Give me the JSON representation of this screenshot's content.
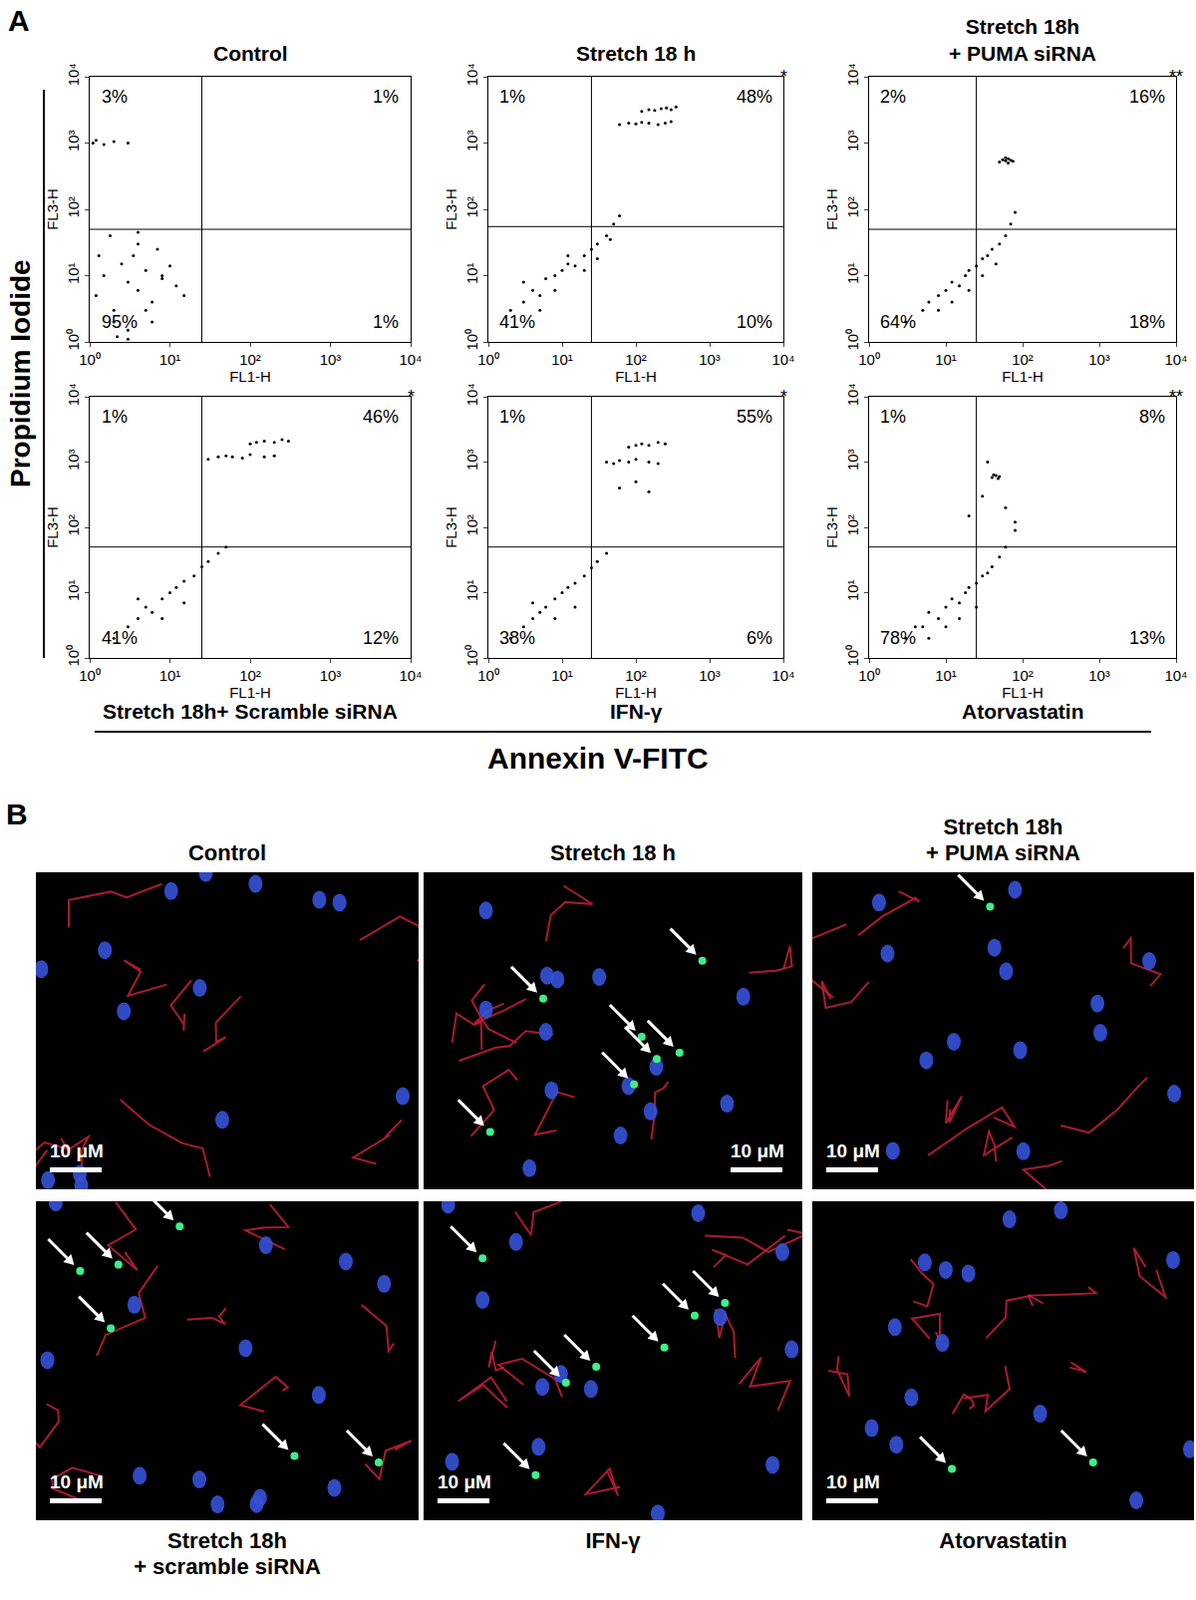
{
  "figure": {
    "panel_labels": [
      "A",
      "B"
    ],
    "y_title": "Propidium Iodide",
    "x_title": "Annexin V-FITC"
  },
  "chart_data": [
    {
      "type": "scatter",
      "title": [
        "Control"
      ],
      "x_label": "FL1-H",
      "y_label": "FL3-H",
      "log": true,
      "xlim": [
        1,
        10000
      ],
      "ylim": [
        1,
        10000
      ],
      "xticks": [
        {
          "value": 1,
          "label": "10⁰"
        },
        {
          "value": 10,
          "label": "10¹"
        },
        {
          "value": 100,
          "label": "10²"
        },
        {
          "value": 1000,
          "label": "10³"
        },
        {
          "value": 10000,
          "label": "10⁴"
        }
      ],
      "yticks": [
        {
          "value": 1,
          "label": "10⁰"
        },
        {
          "value": 10,
          "label": "10¹"
        },
        {
          "value": 100,
          "label": "10²"
        },
        {
          "value": 1000,
          "label": "10³"
        },
        {
          "value": 10000,
          "label": "10⁴"
        }
      ],
      "grid": false,
      "color": "#000000",
      "marker": "dot",
      "gate": {
        "x": 25,
        "y": 50
      },
      "quadrants": {
        "upper_left": {
          "value": 3,
          "label": "3%"
        },
        "upper_right": {
          "value": 1,
          "label": "1%"
        },
        "lower_left": {
          "value": 95,
          "label": "95%"
        },
        "lower_right": {
          "value": 1,
          "label": "1%"
        }
      },
      "x": [
        1.2,
        1.5,
        2,
        2.5,
        3,
        3.5,
        4,
        5,
        6,
        7,
        8,
        10,
        12,
        15,
        2,
        3,
        4,
        5,
        6,
        8,
        1.3,
        1.8,
        2.2,
        3,
        4,
        1.1,
        1.2,
        1.5,
        2,
        3
      ],
      "y": [
        5,
        10,
        3,
        15,
        8,
        20,
        6,
        12,
        4,
        25,
        9,
        14,
        7,
        5,
        2,
        1.5,
        30,
        3,
        2,
        10,
        20,
        40,
        1.2,
        1.1,
        45,
        1000,
        1100,
        950,
        1050,
        1000
      ]
    },
    {
      "type": "scatter",
      "title": [
        "Stretch 18 h"
      ],
      "x_label": "FL1-H",
      "y_label": "FL3-H",
      "log": true,
      "xlim": [
        1,
        10000
      ],
      "ylim": [
        1,
        10000
      ],
      "xticks": [
        {
          "value": 1,
          "label": "10⁰"
        },
        {
          "value": 10,
          "label": "10¹"
        },
        {
          "value": 100,
          "label": "10²"
        },
        {
          "value": 1000,
          "label": "10³"
        },
        {
          "value": 10000,
          "label": "10⁴"
        }
      ],
      "yticks": [
        {
          "value": 1,
          "label": "10⁰"
        },
        {
          "value": 10,
          "label": "10¹"
        },
        {
          "value": 100,
          "label": "10²"
        },
        {
          "value": 1000,
          "label": "10³"
        },
        {
          "value": 10000,
          "label": "10⁴"
        }
      ],
      "grid": false,
      "color": "#000000",
      "marker": "dot",
      "gate": {
        "x": 25,
        "y": 55
      },
      "quadrants": {
        "upper_left": {
          "value": 1,
          "label": "1%"
        },
        "upper_right": {
          "value": 48,
          "label": "48%"
        },
        "lower_left": {
          "value": 41,
          "label": "41%"
        },
        "lower_right": {
          "value": 10,
          "label": "10%"
        }
      },
      "significance": "*",
      "x": [
        2,
        3,
        4,
        5,
        6,
        8,
        10,
        12,
        15,
        20,
        25,
        30,
        40,
        50,
        60,
        3,
        5,
        8,
        12,
        20,
        30,
        45,
        60,
        80,
        100,
        120,
        150,
        200,
        250,
        300,
        120,
        150,
        180,
        220,
        260,
        300,
        350
      ],
      "y": [
        3,
        4,
        6,
        5,
        9,
        10,
        12,
        15,
        14,
        20,
        25,
        30,
        40,
        60,
        80,
        8,
        3,
        6,
        20,
        12,
        18,
        35,
        1900,
        2000,
        1950,
        2050,
        2000,
        1900,
        2000,
        2100,
        3000,
        3200,
        3100,
        3300,
        3400,
        3200,
        3500
      ]
    },
    {
      "type": "scatter",
      "title": [
        "Stretch 18h",
        "+ PUMA siRNA"
      ],
      "x_label": "FL1-H",
      "y_label": "FL3-H",
      "log": true,
      "xlim": [
        1,
        10000
      ],
      "ylim": [
        1,
        10000
      ],
      "xticks": [
        {
          "value": 1,
          "label": "10⁰"
        },
        {
          "value": 10,
          "label": "10¹"
        },
        {
          "value": 100,
          "label": "10²"
        },
        {
          "value": 1000,
          "label": "10³"
        },
        {
          "value": 10000,
          "label": "10⁴"
        }
      ],
      "yticks": [
        {
          "value": 1,
          "label": "10⁰"
        },
        {
          "value": 10,
          "label": "10¹"
        },
        {
          "value": 100,
          "label": "10²"
        },
        {
          "value": 1000,
          "label": "10³"
        },
        {
          "value": 10000,
          "label": "10⁴"
        }
      ],
      "grid": false,
      "color": "#000000",
      "marker": "dot",
      "gate": {
        "x": 25,
        "y": 50
      },
      "quadrants": {
        "upper_left": {
          "value": 2,
          "label": "2%"
        },
        "upper_right": {
          "value": 16,
          "label": "16%"
        },
        "lower_left": {
          "value": 64,
          "label": "64%"
        },
        "lower_right": {
          "value": 18,
          "label": "18%"
        }
      },
      "significance": "**",
      "x": [
        3,
        5,
        6,
        8,
        10,
        12,
        15,
        18,
        20,
        25,
        30,
        35,
        40,
        50,
        60,
        70,
        80,
        8,
        12,
        20,
        30,
        45,
        50,
        55,
        60,
        65,
        70,
        75,
        60,
        65
      ],
      "y": [
        2,
        3,
        4,
        5,
        6,
        8,
        7,
        10,
        12,
        14,
        18,
        20,
        25,
        30,
        40,
        60,
        90,
        3,
        4,
        6,
        10,
        15,
        520,
        560,
        540,
        580,
        550,
        530,
        600,
        500
      ]
    },
    {
      "type": "scatter",
      "title": [
        "Stretch 18h+ Scramble siRNA"
      ],
      "x_label": "FL1-H",
      "y_label": "FL3-H",
      "log": true,
      "xlim": [
        1,
        10000
      ],
      "ylim": [
        1,
        10000
      ],
      "xticks": [
        {
          "value": 1,
          "label": "10⁰"
        },
        {
          "value": 10,
          "label": "10¹"
        },
        {
          "value": 100,
          "label": "10²"
        },
        {
          "value": 1000,
          "label": "10³"
        },
        {
          "value": 10000,
          "label": "10⁴"
        }
      ],
      "yticks": [
        {
          "value": 1,
          "label": "10⁰"
        },
        {
          "value": 10,
          "label": "10¹"
        },
        {
          "value": 100,
          "label": "10²"
        },
        {
          "value": 1000,
          "label": "10³"
        },
        {
          "value": 10000,
          "label": "10⁴"
        }
      ],
      "grid": false,
      "color": "#000000",
      "marker": "dot",
      "gate": {
        "x": 25,
        "y": 50
      },
      "quadrants": {
        "upper_left": {
          "value": 1,
          "label": "1%"
        },
        "upper_right": {
          "value": 46,
          "label": "46%"
        },
        "lower_left": {
          "value": 41,
          "label": "41%"
        },
        "lower_right": {
          "value": 12,
          "label": "12%"
        }
      },
      "significance": "*",
      "x": [
        2,
        3,
        4,
        5,
        6,
        8,
        10,
        12,
        15,
        20,
        25,
        30,
        40,
        50,
        4,
        8,
        15,
        30,
        40,
        50,
        60,
        80,
        100,
        150,
        200,
        100,
        120,
        150,
        200,
        250,
        300
      ],
      "y": [
        2,
        3,
        4,
        6,
        5,
        8,
        10,
        12,
        15,
        18,
        25,
        30,
        40,
        50,
        8,
        4,
        7,
        1100,
        1200,
        1250,
        1200,
        1150,
        1300,
        1200,
        1250,
        1900,
        2000,
        2100,
        2000,
        2200,
        2100
      ]
    },
    {
      "type": "scatter",
      "title": [
        "IFN-γ"
      ],
      "x_label": "FL1-H",
      "y_label": "FL3-H",
      "log": true,
      "xlim": [
        1,
        10000
      ],
      "ylim": [
        1,
        10000
      ],
      "xticks": [
        {
          "value": 1,
          "label": "10⁰"
        },
        {
          "value": 10,
          "label": "10¹"
        },
        {
          "value": 100,
          "label": "10²"
        },
        {
          "value": 1000,
          "label": "10³"
        },
        {
          "value": 10000,
          "label": "10⁴"
        }
      ],
      "yticks": [
        {
          "value": 1,
          "label": "10⁰"
        },
        {
          "value": 10,
          "label": "10¹"
        },
        {
          "value": 100,
          "label": "10²"
        },
        {
          "value": 1000,
          "label": "10³"
        },
        {
          "value": 10000,
          "label": "10⁴"
        }
      ],
      "grid": false,
      "color": "#000000",
      "marker": "dot",
      "gate": {
        "x": 25,
        "y": 50
      },
      "quadrants": {
        "upper_left": {
          "value": 1,
          "label": "1%"
        },
        "upper_right": {
          "value": 55,
          "label": "55%"
        },
        "lower_left": {
          "value": 38,
          "label": "38%"
        },
        "lower_right": {
          "value": 6,
          "label": "6%"
        }
      },
      "significance": "*",
      "x": [
        2,
        3,
        4,
        5,
        6,
        8,
        10,
        12,
        15,
        20,
        25,
        30,
        40,
        4,
        8,
        15,
        40,
        50,
        60,
        80,
        100,
        150,
        200,
        80,
        100,
        120,
        150,
        200,
        250,
        60,
        100,
        150
      ],
      "y": [
        2,
        3,
        4,
        5,
        6,
        8,
        10,
        12,
        14,
        18,
        24,
        30,
        40,
        7,
        4,
        6,
        1000,
        950,
        1050,
        1000,
        1100,
        1000,
        950,
        1700,
        1800,
        1900,
        1800,
        2000,
        1900,
        400,
        500,
        350
      ]
    },
    {
      "type": "scatter",
      "title": [
        "Atorvastatin"
      ],
      "x_label": "FL1-H",
      "y_label": "FL3-H",
      "log": true,
      "xlim": [
        1,
        10000
      ],
      "ylim": [
        1,
        10000
      ],
      "xticks": [
        {
          "value": 1,
          "label": "10⁰"
        },
        {
          "value": 10,
          "label": "10¹"
        },
        {
          "value": 100,
          "label": "10²"
        },
        {
          "value": 1000,
          "label": "10³"
        },
        {
          "value": 10000,
          "label": "10⁴"
        }
      ],
      "yticks": [
        {
          "value": 1,
          "label": "10⁰"
        },
        {
          "value": 10,
          "label": "10¹"
        },
        {
          "value": 100,
          "label": "10²"
        },
        {
          "value": 1000,
          "label": "10³"
        },
        {
          "value": 10000,
          "label": "10⁴"
        }
      ],
      "grid": false,
      "color": "#000000",
      "marker": "dot",
      "gate": {
        "x": 25,
        "y": 50
      },
      "quadrants": {
        "upper_left": {
          "value": 1,
          "label": "1%"
        },
        "upper_right": {
          "value": 8,
          "label": "8%"
        },
        "lower_left": {
          "value": 78,
          "label": "78%"
        },
        "lower_right": {
          "value": 13,
          "label": "13%"
        }
      },
      "significance": "**",
      "x": [
        3,
        4,
        5,
        6,
        8,
        10,
        12,
        15,
        18,
        20,
        25,
        30,
        35,
        40,
        50,
        60,
        80,
        6,
        10,
        15,
        25,
        40,
        45,
        50,
        42,
        48,
        20,
        30,
        60,
        35,
        80
      ],
      "y": [
        2,
        3,
        3,
        5,
        4,
        6,
        8,
        7,
        10,
        12,
        14,
        18,
        20,
        25,
        35,
        50,
        90,
        2,
        3,
        4,
        6,
        580,
        620,
        600,
        640,
        560,
        150,
        300,
        200,
        1000,
        120
      ]
    }
  ],
  "panel_b": {
    "panels": [
      {
        "title": [
          "Control"
        ],
        "scale_bar": "10 μM"
      },
      {
        "title": [
          "Stretch 18 h"
        ],
        "scale_bar": "10 μM"
      },
      {
        "title": [
          "Stretch 18h",
          "+ PUMA siRNA"
        ],
        "scale_bar": "10 μM"
      },
      {
        "title": [
          "Stretch 18h",
          "+ scramble siRNA"
        ],
        "scale_bar": "10 μM"
      },
      {
        "title": [
          "IFN-γ"
        ],
        "scale_bar": "10 μM"
      },
      {
        "title": [
          "Atorvastatin"
        ],
        "scale_bar": "10 μM"
      }
    ]
  }
}
